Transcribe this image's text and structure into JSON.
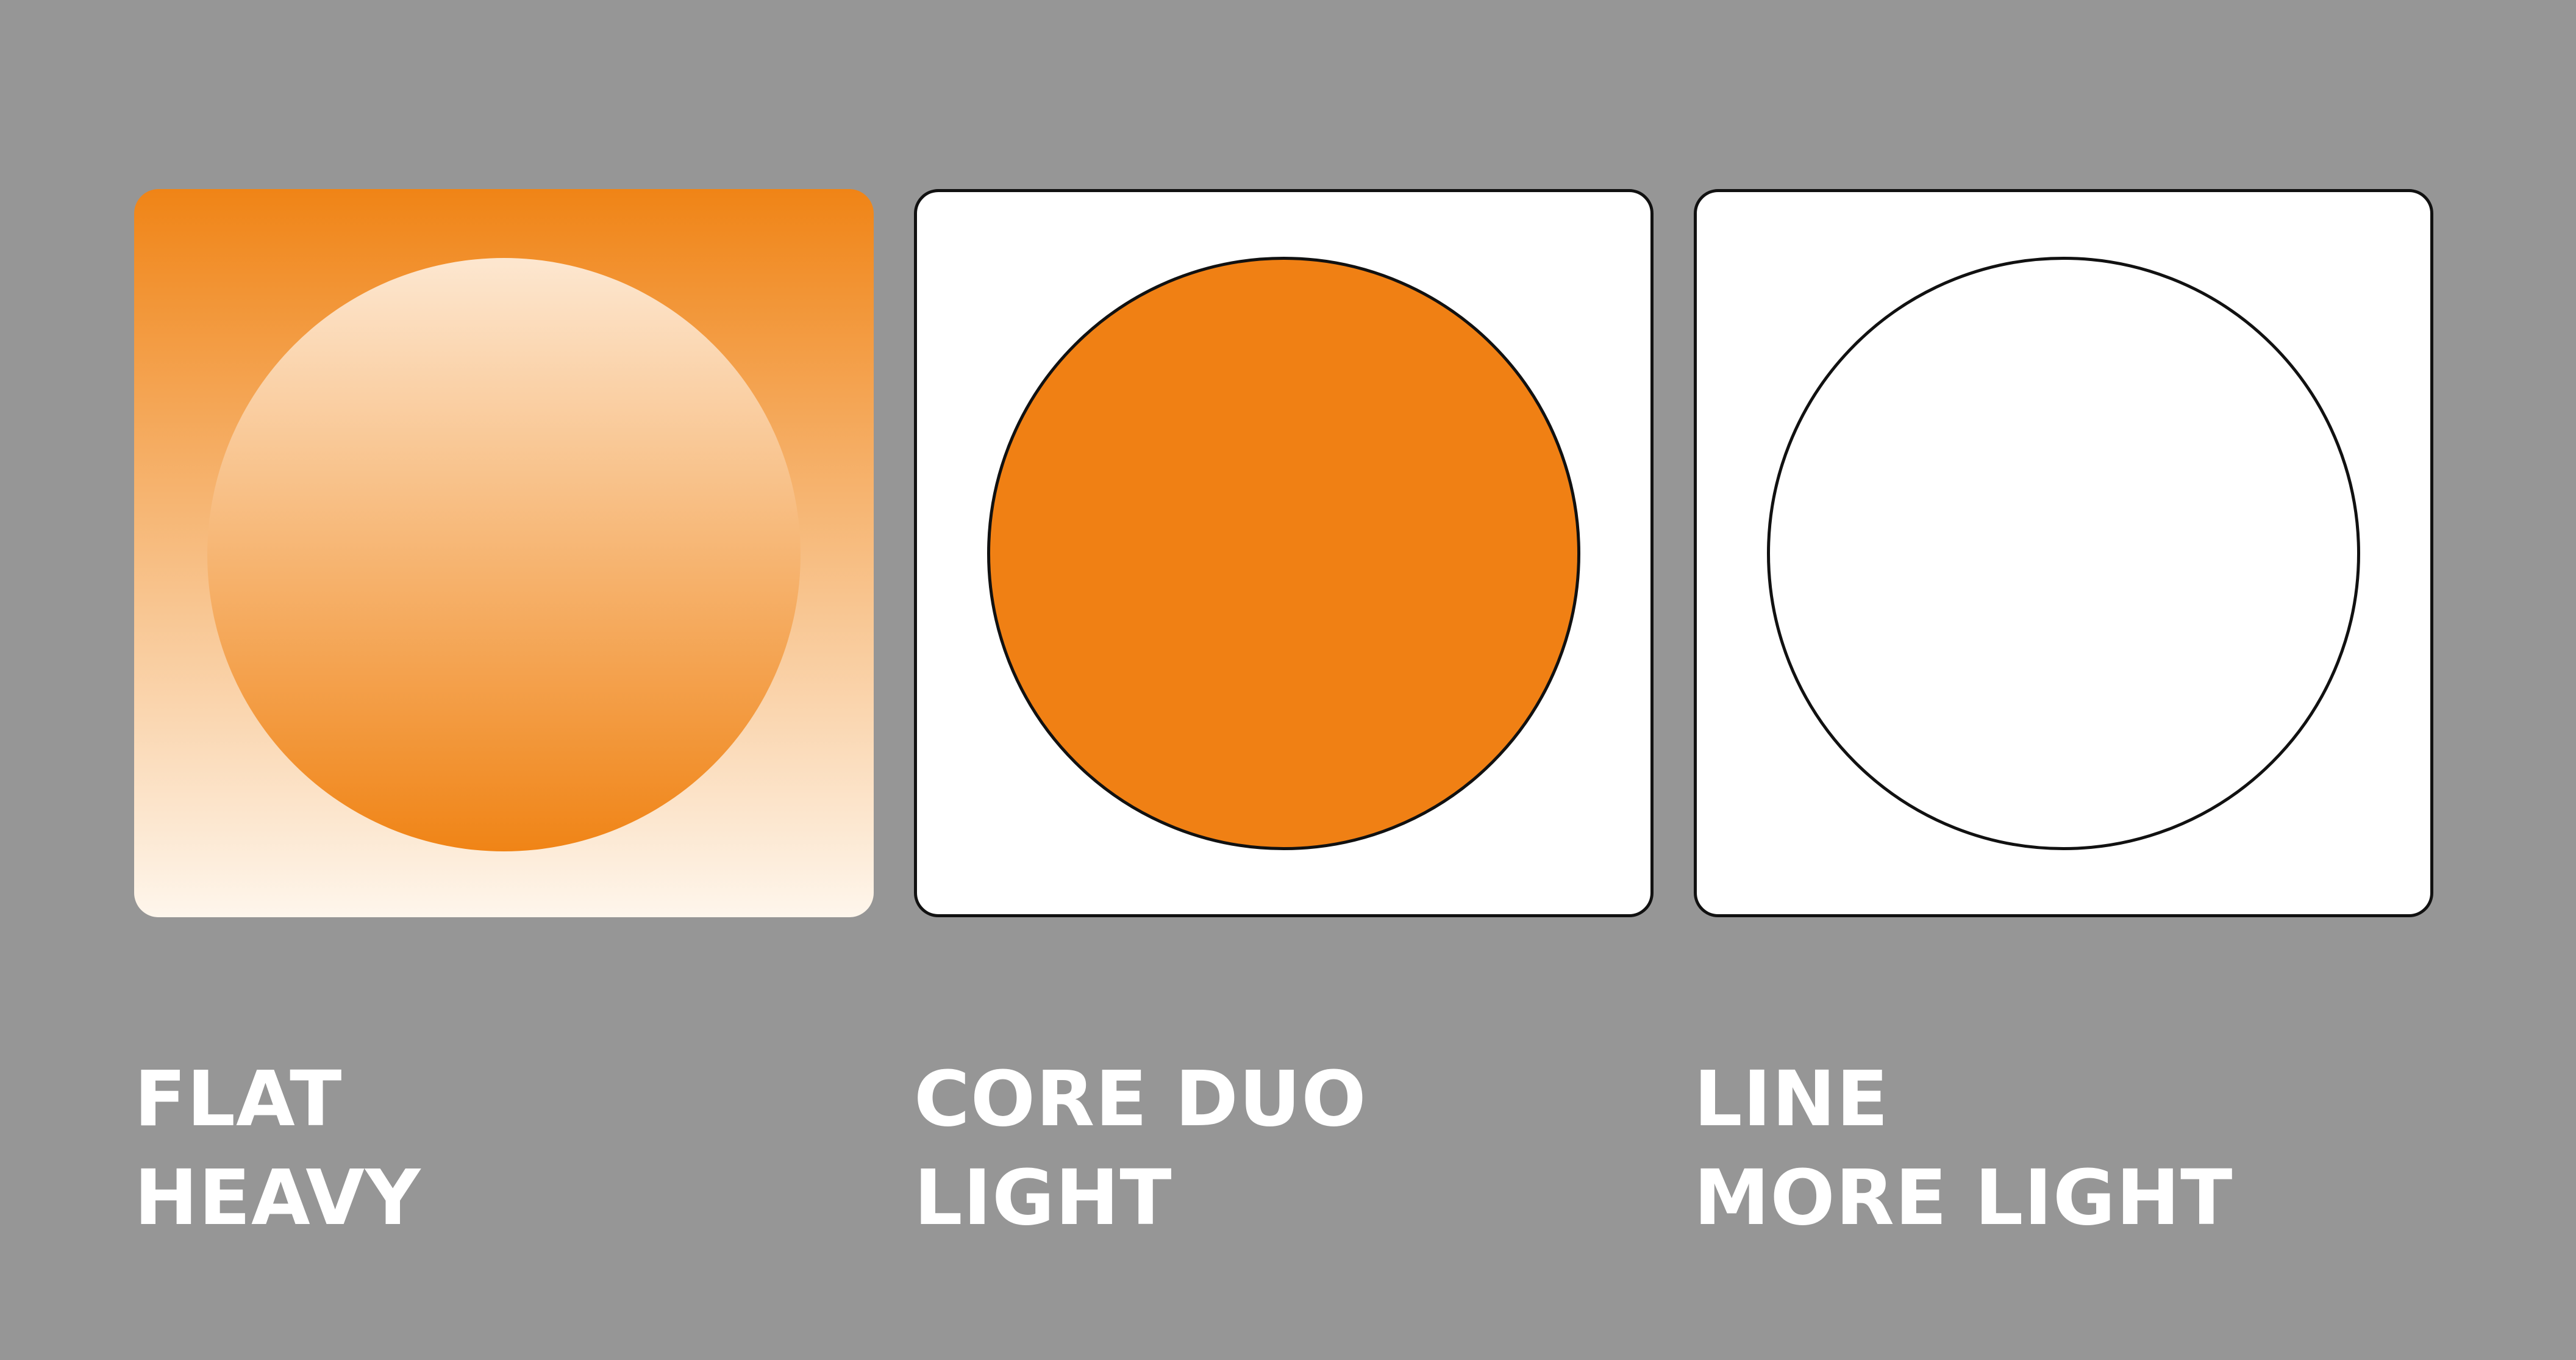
{
  "styles": [
    {
      "id": "flat",
      "name": "FLAT",
      "weight": "HEAVY",
      "primary_color": "#f08416",
      "light_color": "#fef6ec"
    },
    {
      "id": "core-duo",
      "name": "CORE DUO",
      "weight": "LIGHT",
      "primary_color": "#f08014",
      "outline_color": "#111111"
    },
    {
      "id": "line",
      "name": "LINE",
      "weight": "MORE LIGHT",
      "outline_color": "#111111"
    }
  ],
  "background_color": "#969696"
}
